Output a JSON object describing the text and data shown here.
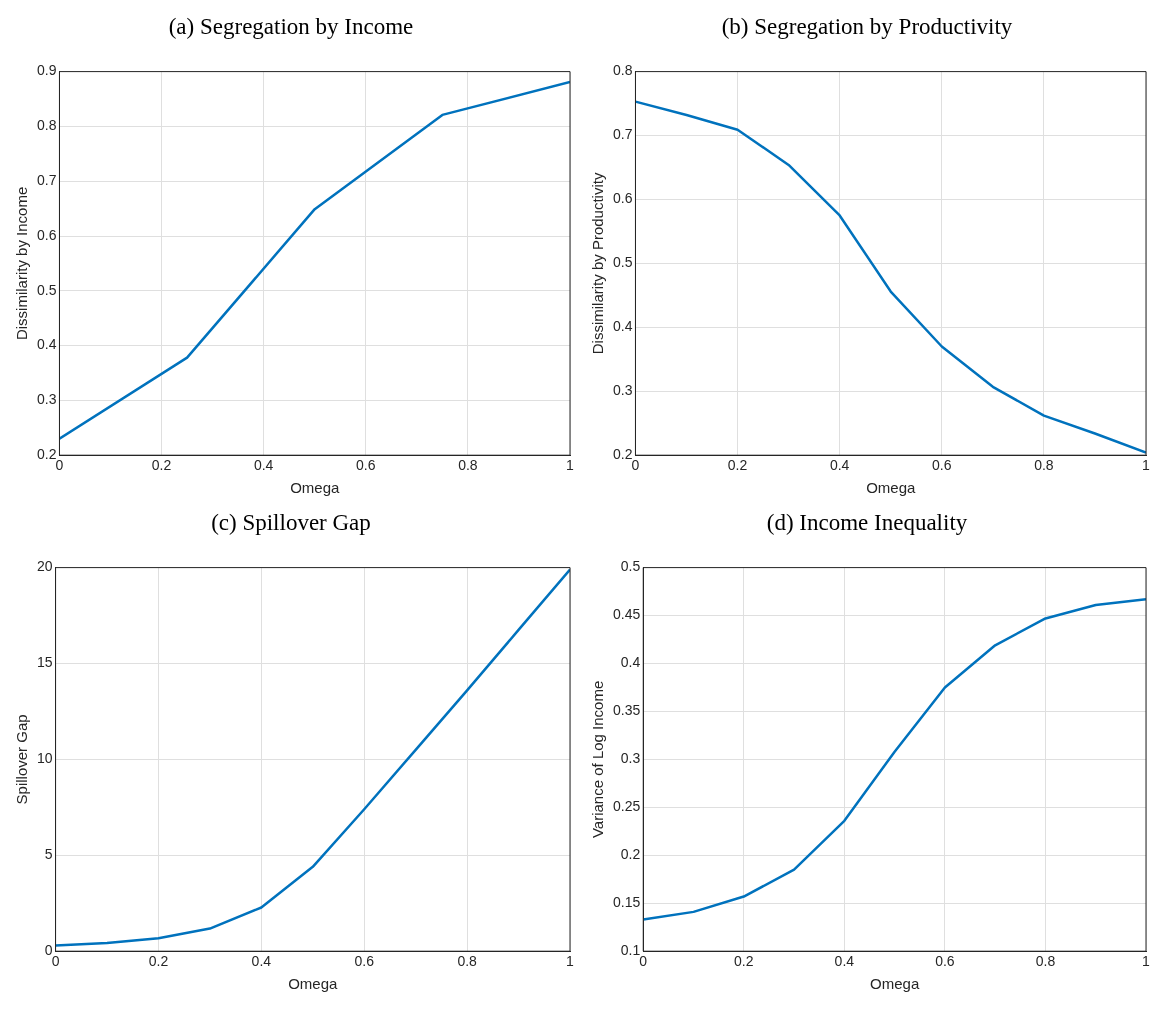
{
  "chart_data": [
    {
      "type": "line",
      "title": "(a) Segregation by Income",
      "xlabel": "Omega",
      "ylabel": "Dissimilarity by Income",
      "x": [
        0,
        0.25,
        0.5,
        0.75,
        1
      ],
      "series": [
        {
          "color": "#0072bd",
          "values": [
            0.23,
            0.378,
            0.649,
            0.821,
            0.881
          ]
        }
      ],
      "xlim": [
        0,
        1
      ],
      "xticks": [
        0,
        0.2,
        0.4,
        0.6,
        0.8,
        1
      ],
      "ylim": [
        0.2,
        0.9
      ],
      "yticks": [
        0.2,
        0.3,
        0.4,
        0.5,
        0.6,
        0.7,
        0.8,
        0.9
      ],
      "grid": true
    },
    {
      "type": "line",
      "title": "(b) Segregation by Productivity",
      "xlabel": "Omega",
      "ylabel": "Dissimilarity by Productivity",
      "x": [
        0,
        0.1,
        0.2,
        0.3,
        0.4,
        0.5,
        0.6,
        0.7,
        0.8,
        0.9,
        1
      ],
      "series": [
        {
          "color": "#0072bd",
          "values": [
            0.753,
            0.732,
            0.709,
            0.654,
            0.575,
            0.456,
            0.37,
            0.307,
            0.262,
            0.234,
            0.204
          ]
        }
      ],
      "xlim": [
        0,
        1
      ],
      "xticks": [
        0,
        0.2,
        0.4,
        0.6,
        0.8,
        1
      ],
      "ylim": [
        0.2,
        0.8
      ],
      "yticks": [
        0.2,
        0.3,
        0.4,
        0.5,
        0.6,
        0.7,
        0.8
      ],
      "grid": true
    },
    {
      "type": "line",
      "title": "(c) Spillover Gap",
      "xlabel": "Omega",
      "ylabel": "Spillover Gap",
      "x": [
        0,
        0.1,
        0.2,
        0.3,
        0.4,
        0.5,
        0.6,
        0.7,
        0.8,
        0.9,
        1
      ],
      "series": [
        {
          "color": "#0072bd",
          "values": [
            0.3,
            0.43,
            0.68,
            1.18,
            2.28,
            4.4,
            7.4,
            10.5,
            13.6,
            16.75,
            19.9
          ]
        }
      ],
      "xlim": [
        0,
        1
      ],
      "xticks": [
        0,
        0.2,
        0.4,
        0.6,
        0.8,
        1
      ],
      "ylim": [
        0,
        20
      ],
      "yticks": [
        0,
        5,
        10,
        15,
        20
      ],
      "grid": true
    },
    {
      "type": "line",
      "title": "(d) Income Inequality",
      "xlabel": "Omega",
      "ylabel": "Variance of Log Income",
      "x": [
        0,
        0.1,
        0.2,
        0.3,
        0.4,
        0.5,
        0.6,
        0.7,
        0.8,
        0.9,
        1
      ],
      "series": [
        {
          "color": "#0072bd",
          "values": [
            0.133,
            0.141,
            0.157,
            0.185,
            0.236,
            0.308,
            0.375,
            0.419,
            0.447,
            0.461,
            0.467
          ]
        }
      ],
      "xlim": [
        0,
        1
      ],
      "xticks": [
        0,
        0.2,
        0.4,
        0.6,
        0.8,
        1
      ],
      "ylim": [
        0.1,
        0.5
      ],
      "yticks": [
        0.1,
        0.15,
        0.2,
        0.25,
        0.3,
        0.35,
        0.4,
        0.45,
        0.5
      ],
      "grid": true
    }
  ]
}
